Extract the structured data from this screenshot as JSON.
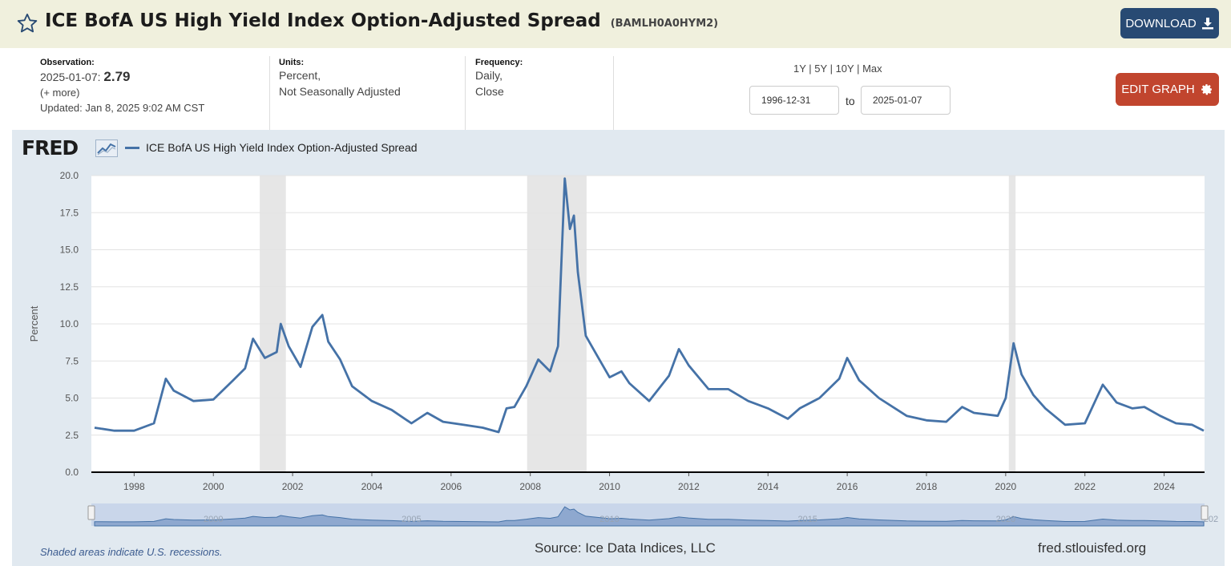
{
  "header": {
    "title": "ICE BofA US High Yield Index Option-Adjusted Spread",
    "series_id": "(BAMLH0A0HYM2)",
    "download_label": "DOWNLOAD"
  },
  "observation": {
    "label": "Observation:",
    "date": "2025-01-07:",
    "value": "2.79",
    "more": "(+ more)",
    "updated_label": "Updated:",
    "updated": "Jan 8, 2025 9:02 AM CST"
  },
  "units": {
    "label": "Units:",
    "line1": "Percent,",
    "line2": "Not Seasonally Adjusted"
  },
  "frequency": {
    "label": "Frequency:",
    "line1": "Daily,",
    "line2": "Close"
  },
  "ranges": [
    "1Y",
    "5Y",
    "10Y",
    "Max"
  ],
  "date_range": {
    "start": "1996-12-31",
    "to": "to",
    "end": "2025-01-07"
  },
  "edit_label": "EDIT GRAPH",
  "logo_text": "FRED",
  "footer": {
    "note": "Shaded areas indicate U.S. recessions.",
    "source": "Source: Ice Data Indices, LLC",
    "site": "fred.stlouisfed.org"
  },
  "colors": {
    "line": "#4572a7",
    "title_bar": "#f0f0dd",
    "download": "#284a73",
    "edit": "#c1452e",
    "recession": "#e6e6e6",
    "plot_bg": "#e1e9f0"
  },
  "icons": {
    "favorite": "star-icon",
    "download": "download-icon",
    "edit": "gear-icon",
    "logo": "chart-logo-icon"
  },
  "chart_data": {
    "type": "line",
    "title": "",
    "xlabel": "",
    "ylabel": "Percent",
    "ylim": [
      0,
      20
    ],
    "xlim": [
      1996.92,
      2025.02
    ],
    "y_ticks": [
      "0.0",
      "2.5",
      "5.0",
      "7.5",
      "10.0",
      "12.5",
      "15.0",
      "17.5",
      "20.0"
    ],
    "x_ticks": [
      "1998",
      "2000",
      "2002",
      "2004",
      "2006",
      "2008",
      "2010",
      "2012",
      "2014",
      "2016",
      "2018",
      "2020",
      "2022",
      "2024"
    ],
    "navigator_labels": [
      "2000",
      "2005",
      "2010",
      "2015",
      "2020",
      "202"
    ],
    "grid": true,
    "legend": "top-left",
    "recessions": [
      [
        2001.17,
        2001.83
      ],
      [
        2007.92,
        2009.42
      ],
      [
        2020.08,
        2020.25
      ]
    ],
    "series": [
      {
        "name": "ICE BofA US High Yield Index Option-Adjusted Spread",
        "x": [
          1997.0,
          1997.5,
          1998.0,
          1998.5,
          1998.8,
          1999.0,
          1999.5,
          2000.0,
          2000.5,
          2000.8,
          2001.0,
          2001.3,
          2001.6,
          2001.7,
          2001.9,
          2002.2,
          2002.5,
          2002.75,
          2002.9,
          2003.2,
          2003.5,
          2004.0,
          2004.5,
          2005.0,
          2005.4,
          2005.8,
          2006.3,
          2006.8,
          2007.2,
          2007.4,
          2007.6,
          2007.9,
          2008.2,
          2008.5,
          2008.7,
          2008.87,
          2009.0,
          2009.1,
          2009.2,
          2009.4,
          2009.7,
          2010.0,
          2010.3,
          2010.5,
          2011.0,
          2011.5,
          2011.75,
          2012.0,
          2012.5,
          2013.0,
          2013.5,
          2014.0,
          2014.5,
          2014.8,
          2015.3,
          2015.8,
          2016.0,
          2016.3,
          2016.8,
          2017.5,
          2018.0,
          2018.5,
          2018.9,
          2019.2,
          2019.8,
          2020.0,
          2020.2,
          2020.4,
          2020.7,
          2021.0,
          2021.5,
          2022.0,
          2022.45,
          2022.8,
          2023.2,
          2023.5,
          2023.9,
          2024.3,
          2024.7,
          2025.0
        ],
        "y": [
          3.0,
          2.8,
          2.8,
          3.3,
          6.3,
          5.5,
          4.8,
          4.9,
          6.2,
          7.0,
          9.0,
          7.7,
          8.1,
          10.0,
          8.5,
          7.1,
          9.8,
          10.6,
          8.8,
          7.6,
          5.8,
          4.8,
          4.2,
          3.3,
          4.0,
          3.4,
          3.2,
          3.0,
          2.7,
          4.3,
          4.4,
          5.8,
          7.6,
          6.8,
          8.5,
          19.8,
          16.4,
          17.3,
          13.5,
          9.2,
          7.8,
          6.4,
          6.8,
          6.0,
          4.8,
          6.5,
          8.3,
          7.2,
          5.6,
          5.6,
          4.8,
          4.3,
          3.6,
          4.3,
          5.0,
          6.3,
          7.7,
          6.2,
          5.0,
          3.8,
          3.5,
          3.4,
          4.4,
          4.0,
          3.8,
          5.0,
          8.7,
          6.6,
          5.2,
          4.3,
          3.2,
          3.3,
          5.9,
          4.7,
          4.3,
          4.4,
          3.8,
          3.3,
          3.2,
          2.8
        ]
      }
    ]
  }
}
